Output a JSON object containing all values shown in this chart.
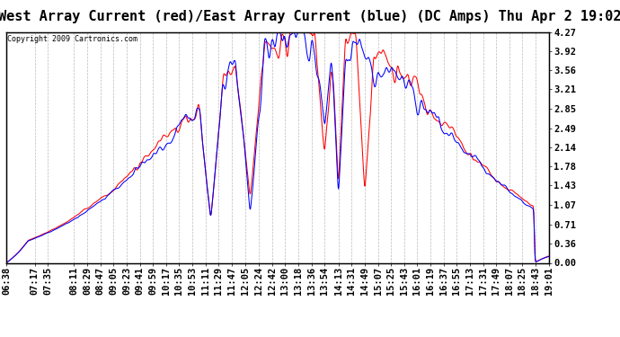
{
  "title": "West Array Current (red)/East Array Current (blue) (DC Amps) Thu Apr 2 19:02",
  "copyright": "Copyright 2009 Cartronics.com",
  "yticks": [
    4.27,
    3.92,
    3.56,
    3.21,
    2.85,
    2.49,
    2.14,
    1.78,
    1.43,
    1.07,
    0.71,
    0.36,
    0.0
  ],
  "ylim": [
    0.0,
    4.27
  ],
  "xtick_labels": [
    "06:38",
    "07:17",
    "07:35",
    "08:11",
    "08:29",
    "08:47",
    "09:05",
    "09:23",
    "09:41",
    "09:59",
    "10:17",
    "10:35",
    "10:53",
    "11:11",
    "11:29",
    "11:47",
    "12:05",
    "12:24",
    "12:42",
    "13:00",
    "13:18",
    "13:36",
    "13:54",
    "14:13",
    "14:31",
    "14:49",
    "15:07",
    "15:25",
    "15:43",
    "16:01",
    "16:19",
    "16:37",
    "16:55",
    "17:13",
    "17:31",
    "17:49",
    "18:07",
    "18:25",
    "18:43",
    "19:01"
  ],
  "background_color": "#ffffff",
  "grid_color": "#bbbbbb",
  "red_color": "#ff0000",
  "blue_color": "#0000ff",
  "title_fontsize": 11,
  "tick_fontsize": 7.5
}
